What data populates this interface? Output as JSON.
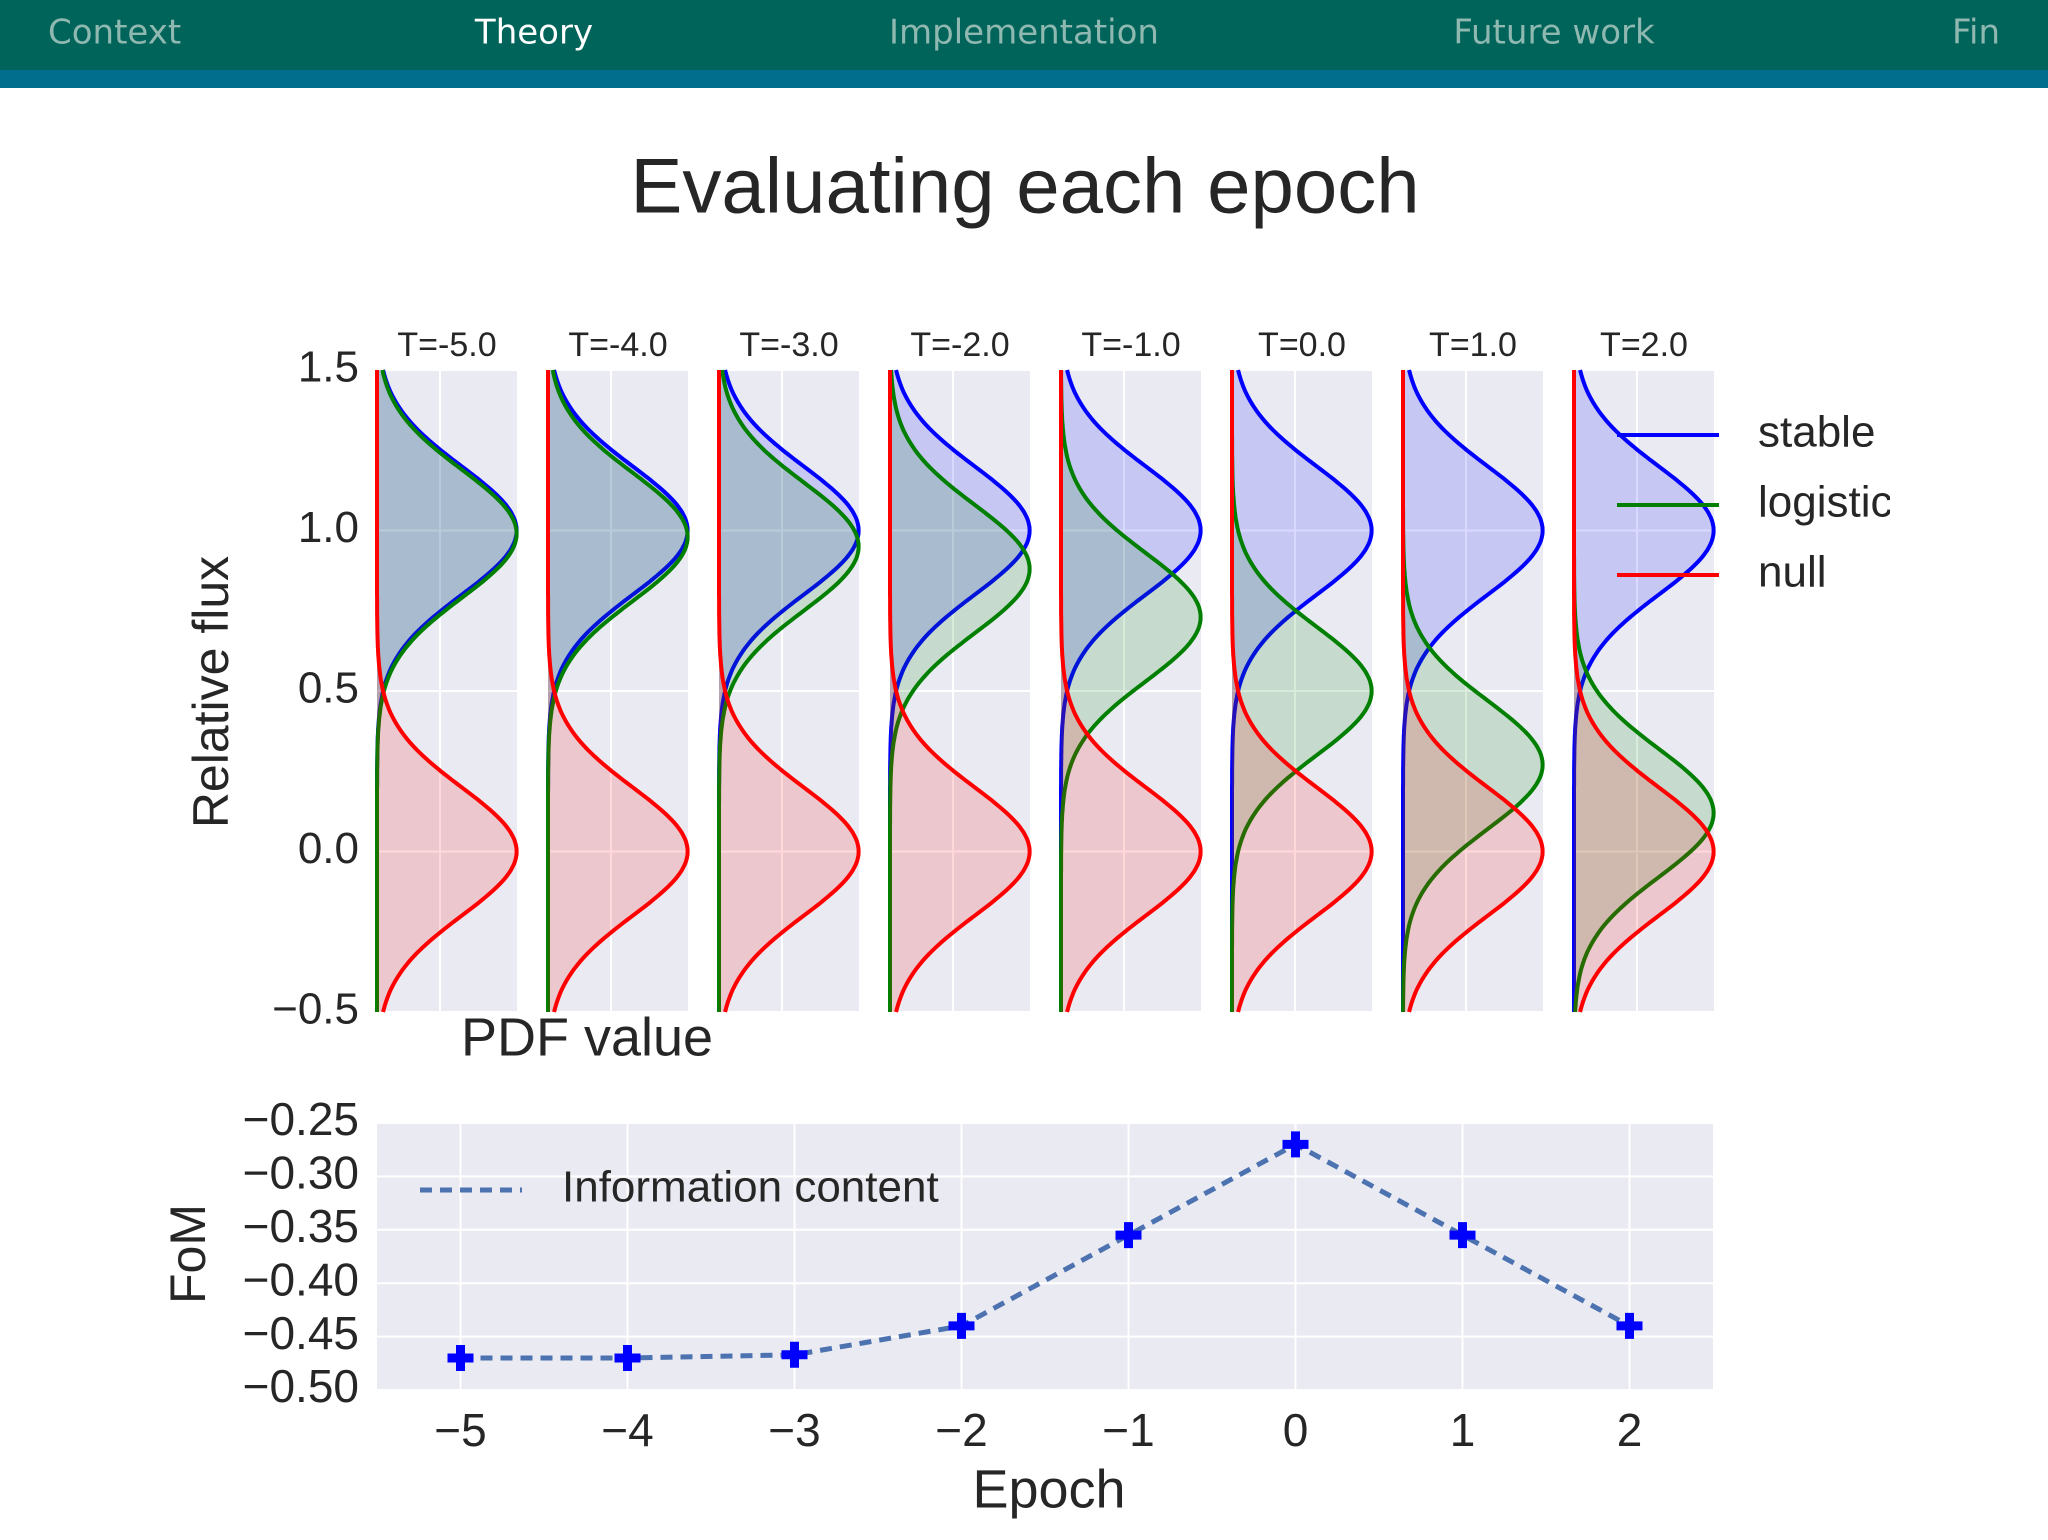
{
  "nav": [
    "Context",
    "Theory",
    "Implementation",
    "Future work",
    "Fin"
  ],
  "title": "Evaluating each epoch",
  "chart_data": [
    {
      "type": "density",
      "panels": [
        "T=-5.0",
        "T=-4.0",
        "T=-3.0",
        "T=-2.0",
        "T=-1.0",
        "T=0.0",
        "T=1.0",
        "T=2.0"
      ],
      "series": [
        {
          "name": "stable",
          "color": "#0000ff",
          "values": [
            1.0,
            1.0,
            1.0,
            1.0,
            1.0,
            1.0,
            1.0,
            1.0
          ]
        },
        {
          "name": "logistic",
          "color": "#007f00",
          "values": [
            0.99,
            0.98,
            0.95,
            0.88,
            0.73,
            0.5,
            0.27,
            0.12
          ]
        },
        {
          "name": "null",
          "color": "#ff0000",
          "values": [
            0.0,
            0.0,
            0.0,
            0.0,
            0.0,
            0.0,
            0.0,
            0.0
          ]
        }
      ],
      "sigma": 0.2,
      "xlabel": "PDF value",
      "ylabel": "Relative flux",
      "xlim": [
        0,
        2
      ],
      "ylim": [
        -0.5,
        1.5
      ],
      "yticks": [
        {
          "value": -0.5,
          "label": "−0.5"
        },
        {
          "value": 0,
          "label": "0.0"
        },
        0.5,
        {
          "value": 1,
          "label": "1.0"
        },
        1.5
      ],
      "grid": true,
      "legend": "right"
    },
    {
      "type": "line",
      "x": [
        -5,
        -4,
        -3,
        -2,
        -1,
        0,
        1,
        2
      ],
      "series": [
        {
          "name": "Information content",
          "color": "#4c72b0",
          "marker_color": "#0000ff",
          "values": [
            -0.47,
            -0.47,
            -0.467,
            -0.44,
            -0.355,
            -0.27,
            -0.355,
            -0.44
          ]
        }
      ],
      "xlabel": "Epoch",
      "ylabel": "FoM",
      "xlim": [
        -5.5,
        2.5
      ],
      "xticks": [
        {
          "value": -5,
          "label": "−5"
        },
        {
          "value": -4,
          "label": "−4"
        },
        {
          "value": -3,
          "label": "−3"
        },
        {
          "value": -2,
          "label": "−2"
        },
        {
          "value": -1,
          "label": "−1"
        },
        0,
        1,
        2
      ],
      "ylim": [
        -0.5,
        -0.25
      ],
      "yticks": [
        {
          "value": -0.5,
          "label": "−0.50"
        },
        {
          "value": -0.45,
          "label": "−0.45"
        },
        {
          "value": -0.4,
          "label": "−0.40"
        },
        {
          "value": -0.35,
          "label": "−0.35"
        },
        {
          "value": -0.3,
          "label": "−0.30"
        },
        {
          "value": -0.25,
          "label": "−0.25"
        }
      ],
      "grid": true,
      "legend": "upper left"
    }
  ]
}
